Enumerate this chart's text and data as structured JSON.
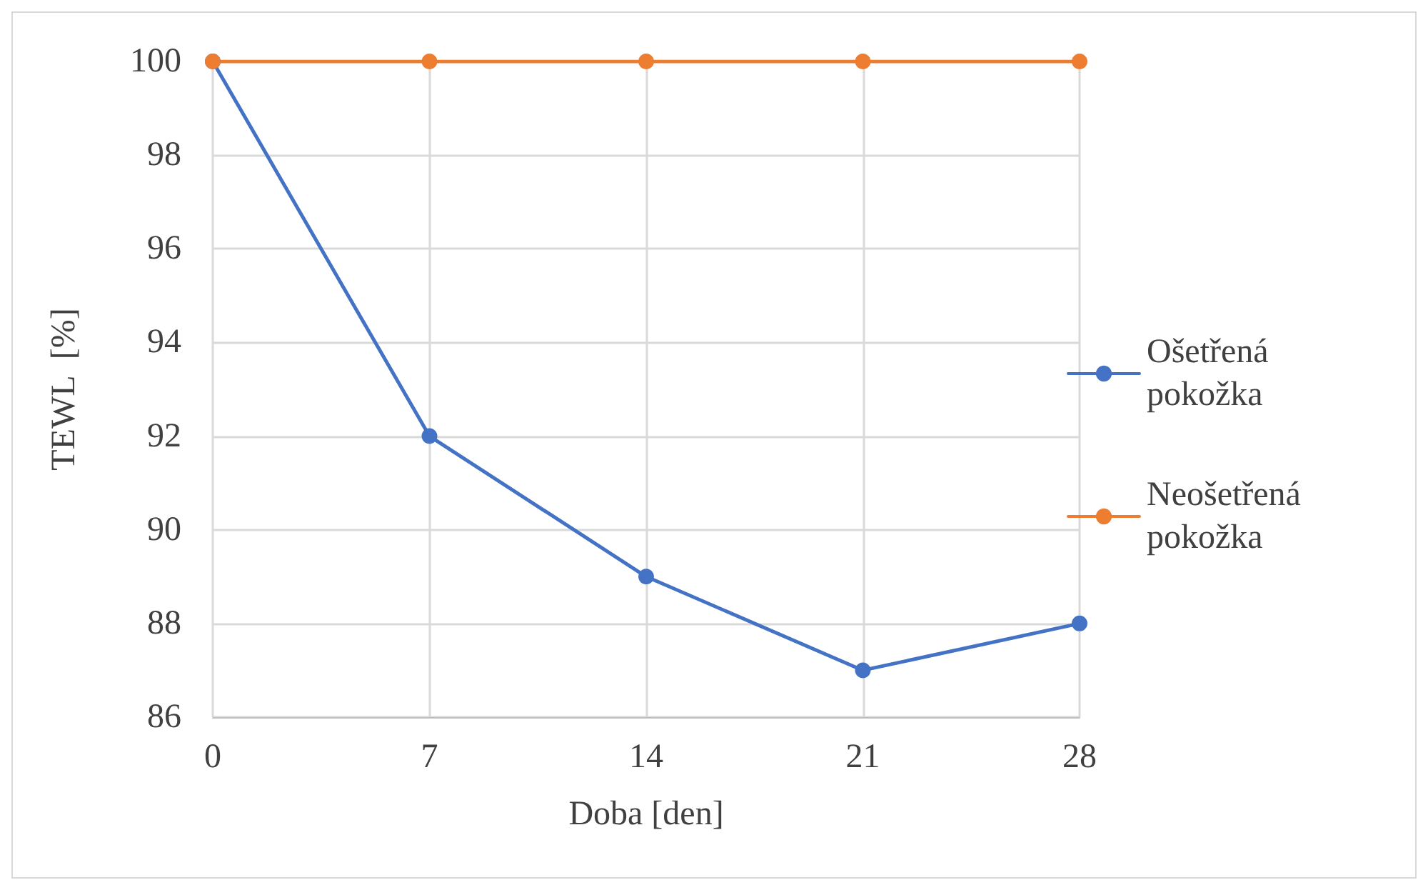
{
  "chart_data": {
    "type": "line",
    "xlabel": "Doba [den]",
    "ylabel": "TEWL  [%]",
    "categories": [
      "0",
      "7",
      "14",
      "21",
      "28"
    ],
    "series": [
      {
        "name": "Ošetřená pokožka",
        "color": "#4472c4",
        "values": [
          100,
          92,
          89,
          87,
          88
        ]
      },
      {
        "name": "Neošetřená pokožka",
        "color": "#ed7d31",
        "values": [
          100,
          100,
          100,
          100,
          100
        ]
      }
    ],
    "ylim": [
      86,
      100
    ],
    "yticks": [
      86,
      88,
      90,
      92,
      94,
      96,
      98,
      100
    ],
    "grid": true,
    "legend": "right",
    "marker": "circle",
    "line_style": "solid"
  }
}
